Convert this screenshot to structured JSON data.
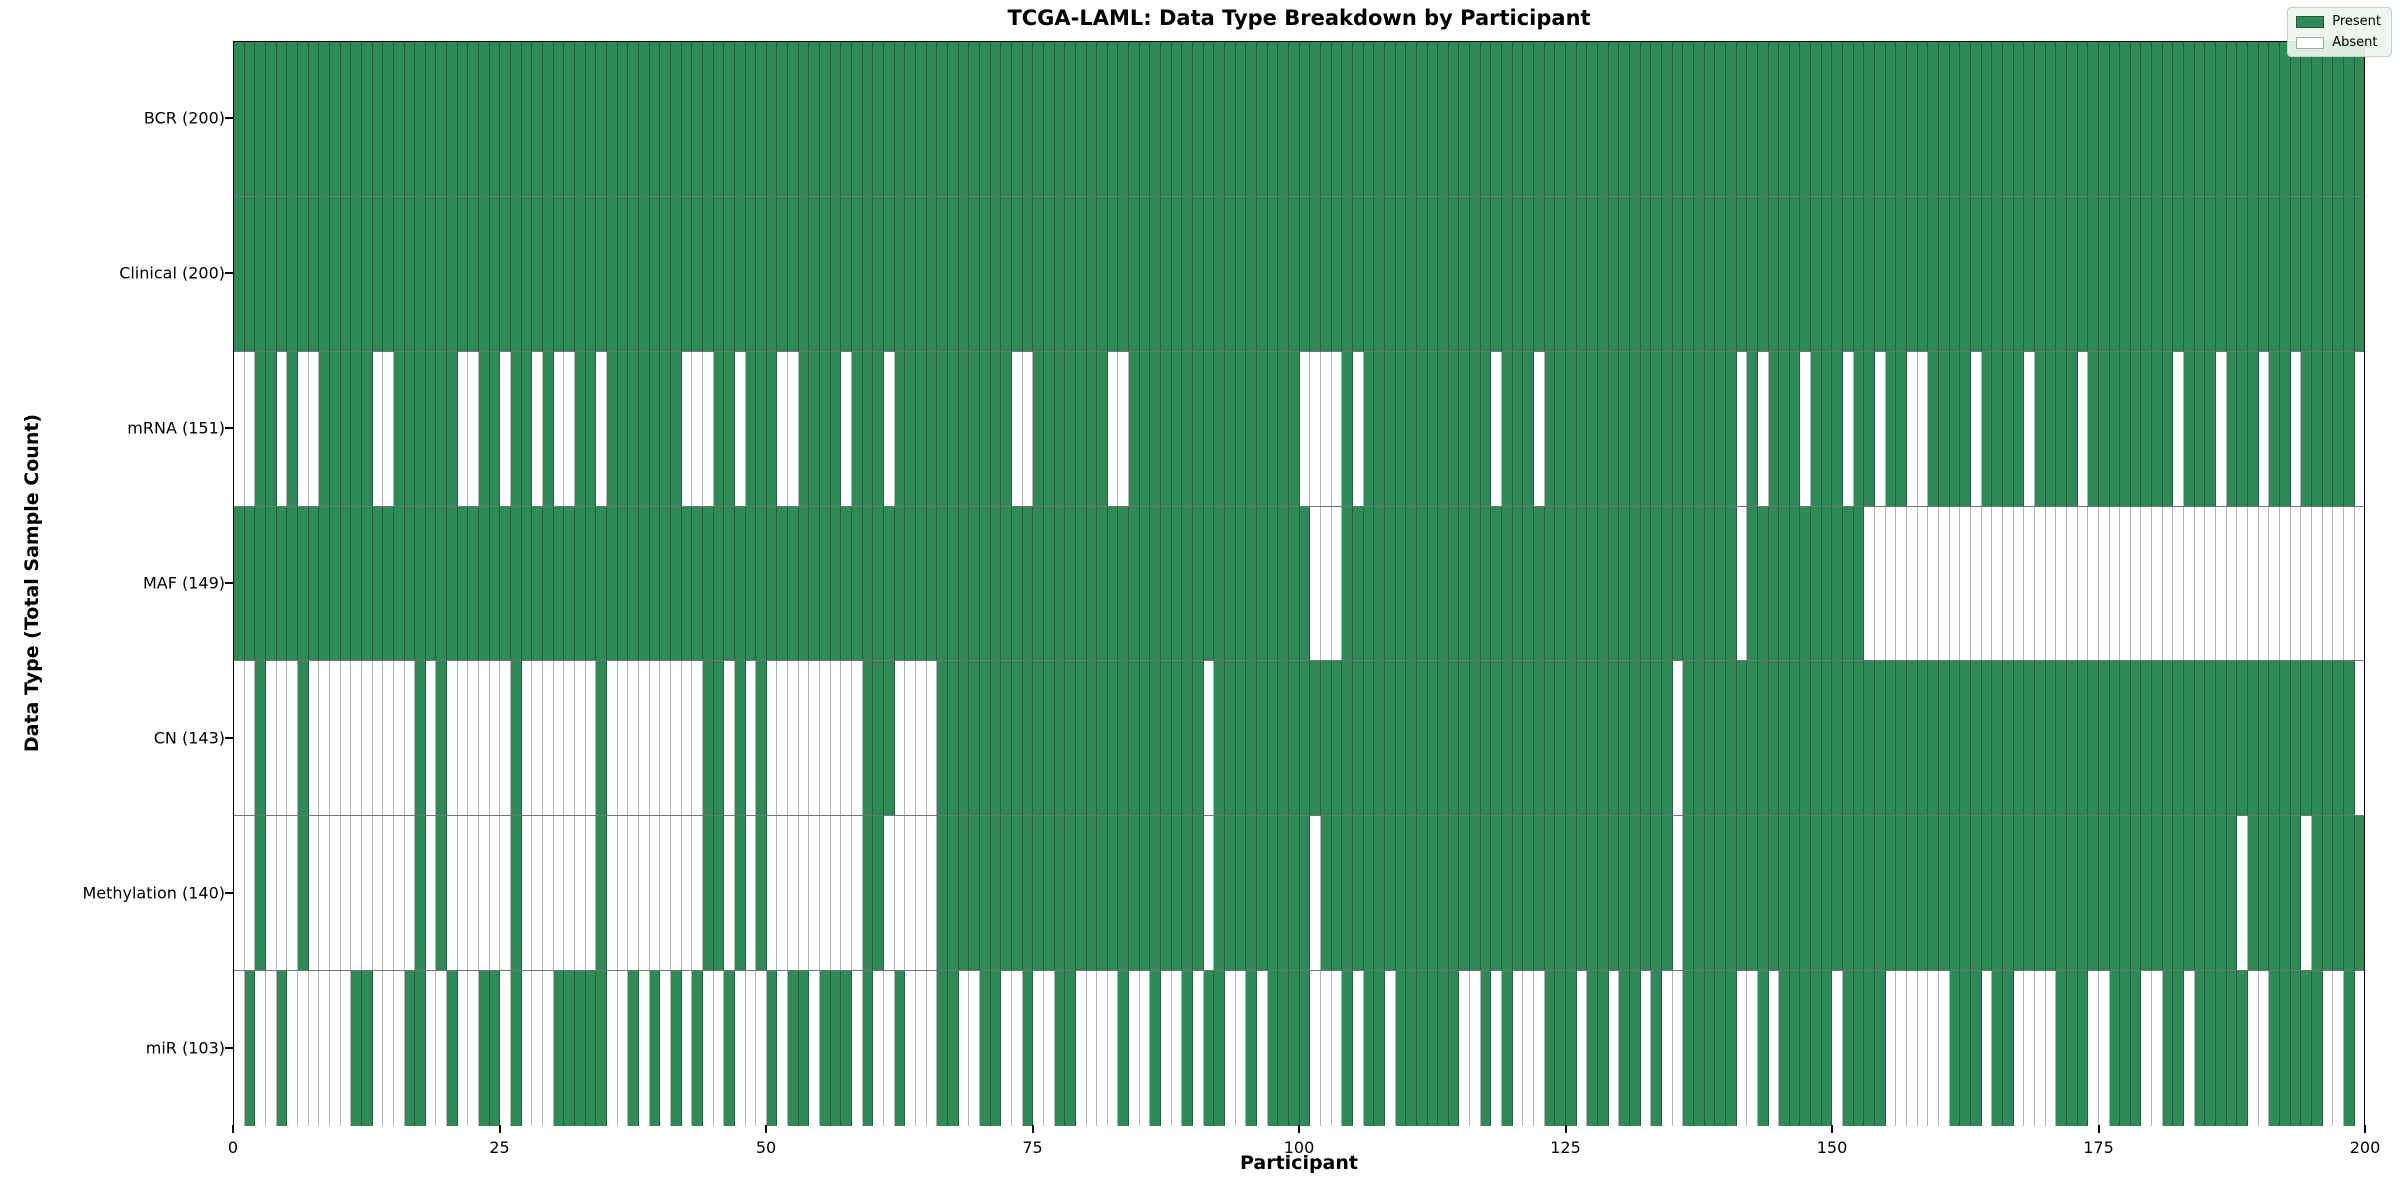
{
  "chart_data": {
    "type": "heatmap",
    "title": "TCGA-LAML: Data Type Breakdown by Participant",
    "xlabel": "Participant",
    "ylabel": "Data Type (Total Sample Count)",
    "x_ticks": [
      0,
      25,
      50,
      75,
      100,
      125,
      150,
      175,
      200
    ],
    "x_range": [
      0,
      200
    ],
    "grid": "cell-borders",
    "legend_position": "upper right",
    "colors": {
      "present": "#2e8b57",
      "absent": "#ffffff"
    },
    "legend": [
      {
        "label": "Present",
        "color": "#2e8b57"
      },
      {
        "label": "Absent",
        "color": "#ffffff"
      }
    ],
    "rows": [
      {
        "label": "BCR (200)",
        "data_type": "BCR",
        "count": 200,
        "pattern": "11111111111111111111111111111111111111111111111111111111111111111111111111111111111111111111111111111111111111111111111111111111111111111111111111111111111111111111111111111111111111111111111111111111"
      },
      {
        "label": "Clinical (200)",
        "data_type": "Clinical",
        "count": 200,
        "pattern": "11111111111111111111111111111111111111111111111111111111111111111111111111111111111111111111111111111111111111111111111111111111111111111111111111111111111111111111111111111111111111111111111111111111"
      },
      {
        "label": "mRNA (151)",
        "data_type": "mRNA",
        "count": 151,
        "pattern": "00110100111110011111100110110100110111111100011011100111101110111111111110011111110011111111111111110000101111111111110111011111111111111111101011101110110110011110111101111011111111011101110110111110"
      },
      {
        "label": "MAF (149)",
        "data_type": "MAF",
        "count": 149,
        "pattern": "11111111111111111111111111111111111111111111111111111111111111111111111111111111111111111111111111111000111111111111111111111111111111111111101111111111100000000000000000000000000000000000000000000000"
      },
      {
        "label": "CN (143)",
        "data_type": "CN",
        "count": 143,
        "pattern": "00100010000000000101000000100000001000000000110101000000000111000011111111111111111111111110111111111111111111111111111111111111111111101111111111111111111111111111111111111111111111111111111111111110"
      },
      {
        "label": "Methylation (140)",
        "data_type": "Methylation",
        "count": 140,
        "pattern": "00100010000000000101000000100000001000000000110101000000000110000011111111111111111111111110111111111011111111111111111111111111111111101111111111111111111111111111111111111111111111111111011111011111"
      },
      {
        "label": "miR (103)",
        "data_type": "miR",
        "count": 103,
        "pattern": "01001000000110001100100110100011111001010101001000101101110100100011001100100110000100100101100101111000101101111110010100011101101101001111100101111101111000000111011000011100111001101111100111110010"
      }
    ]
  }
}
